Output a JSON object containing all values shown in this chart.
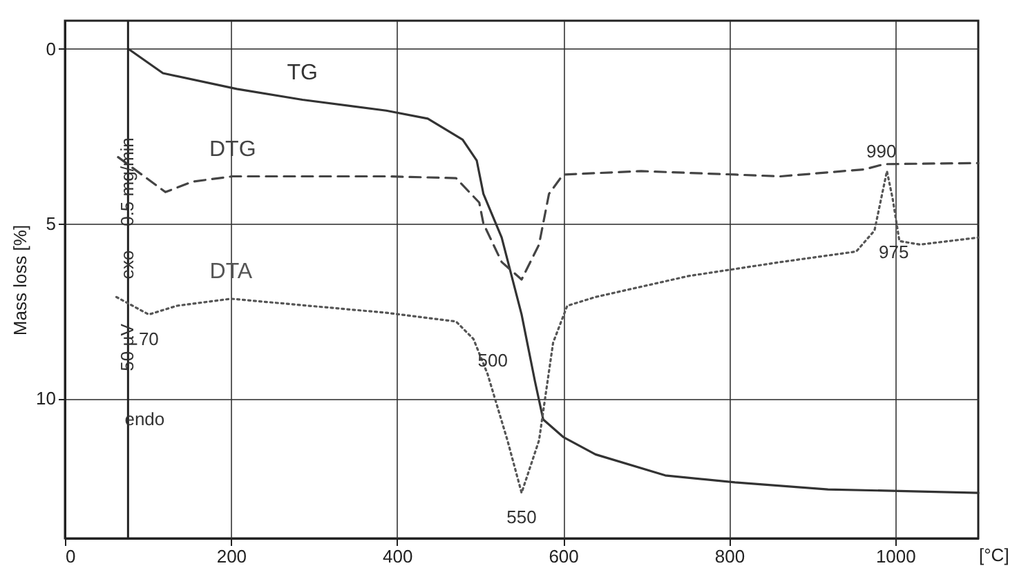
{
  "chart_data": {
    "type": "line",
    "xlabel": "[°C]",
    "ylabel": "Mass loss [%]",
    "xlim": [
      0,
      1100
    ],
    "xticks": [
      0,
      200,
      400,
      600,
      800,
      1000
    ],
    "ylim": [
      14,
      -0.8
    ],
    "yticks": [
      0,
      5,
      10
    ],
    "grid": true,
    "marker": "none",
    "series": [
      {
        "name": "TG",
        "color": "#333333",
        "line_style": "solid",
        "x": [
          76,
          118,
          207,
          286,
          387,
          437,
          479,
          496,
          504,
          526,
          550,
          566,
          576,
          600,
          639,
          723,
          807,
          919,
          1100
        ],
        "values": [
          0,
          0.7,
          1.15,
          1.46,
          1.77,
          2.0,
          2.6,
          3.2,
          4.15,
          5.4,
          7.6,
          9.5,
          10.6,
          11.1,
          11.6,
          12.2,
          12.4,
          12.6,
          12.7
        ]
      },
      {
        "name": "DTG",
        "color": "#444444",
        "line_style": "dashed",
        "x": [
          64,
          121,
          154,
          202,
          387,
          471,
          499,
          504,
          526,
          550,
          571,
          583,
          600,
          694,
          807,
          862,
          963,
          987,
          1100
        ],
        "values": [
          3.1,
          4.1,
          3.8,
          3.65,
          3.65,
          3.7,
          4.4,
          5.0,
          6.1,
          6.6,
          5.6,
          4.15,
          3.6,
          3.5,
          3.6,
          3.65,
          3.45,
          3.3,
          3.27
        ]
      },
      {
        "name": "DTA",
        "color": "#555555",
        "line_style": "dotted",
        "x": [
          62,
          101,
          135,
          200,
          387,
          471,
          492,
          509,
          533,
          550,
          571,
          588,
          605,
          639,
          751,
          862,
          953,
          975,
          990,
          997,
          1005,
          1030,
          1100
        ],
        "values": [
          7.1,
          7.6,
          7.35,
          7.15,
          7.55,
          7.8,
          8.3,
          9.3,
          11.2,
          12.7,
          11.2,
          8.4,
          7.35,
          7.1,
          6.5,
          6.1,
          5.8,
          5.2,
          3.5,
          4.3,
          5.5,
          5.6,
          5.4
        ]
      }
    ],
    "ref_lines": [
      {
        "axis": "x",
        "value": 76,
        "color": "#222222"
      }
    ],
    "annotations": [
      {
        "text": "70",
        "x": 101,
        "y": 7.6
      },
      {
        "text": "500",
        "x": 492,
        "y": 8.3
      },
      {
        "text": "550",
        "x": 550,
        "y": 12.7
      },
      {
        "text": "975",
        "x": 975,
        "y": 5.2
      },
      {
        "text": "990",
        "x": 990,
        "y": 3.5
      },
      "0.5 mg/min",
      "exo",
      "50 µV",
      "endo"
    ]
  }
}
